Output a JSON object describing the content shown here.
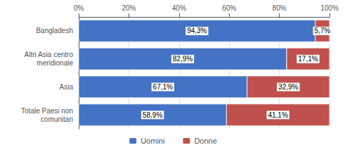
{
  "chart_data": {
    "type": "bar",
    "orientation": "horizontal",
    "stacked": true,
    "data_labels": true,
    "grid": true,
    "legend": "bottom",
    "categories": [
      "Bangladesh",
      "Altri Asia centro\nmeridionale",
      "Asia",
      "Totale Paesi non\ncomunitari"
    ],
    "series": [
      {
        "name": "Uomini",
        "color": "#4472C4",
        "values": [
          94.3,
          82.9,
          67.1,
          58.9
        ],
        "value_labels": [
          "94,3%",
          "82,9%",
          "67,1%",
          "58,9%"
        ]
      },
      {
        "name": "Donne",
        "color": "#C0504D",
        "values": [
          5.7,
          17.1,
          32.9,
          41.1
        ],
        "value_labels": [
          "5,7%",
          "17,1%",
          "32,9%",
          "41,1%"
        ]
      }
    ],
    "xlim": [
      0,
      100
    ],
    "xticks": [
      {
        "value": 0,
        "label": "0%"
      },
      {
        "value": 20,
        "label": "20%"
      },
      {
        "value": 40,
        "label": "40%"
      },
      {
        "value": 60,
        "label": "60%"
      },
      {
        "value": 80,
        "label": "80%"
      },
      {
        "value": 100,
        "label": "100%"
      }
    ]
  }
}
